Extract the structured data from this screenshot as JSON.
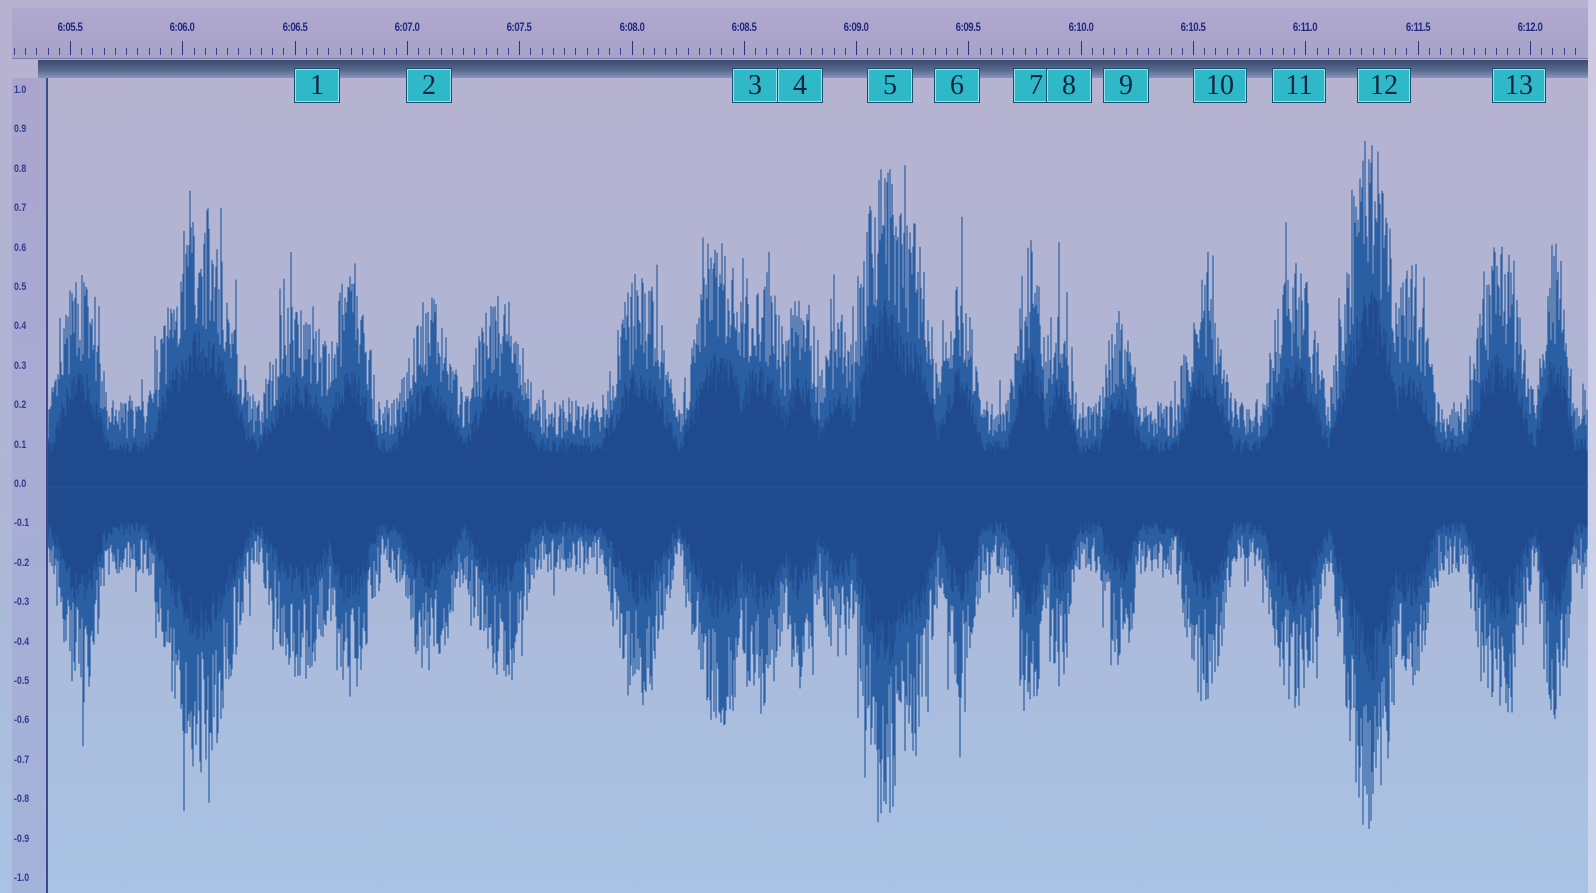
{
  "timeline": {
    "labels": [
      "6:05.5",
      "6:06.0",
      "6:06.5",
      "6:07.0",
      "6:07.5",
      "6:08.0",
      "6:08.5",
      "6:09.0",
      "6:09.5",
      "6:10.0",
      "6:10.5",
      "6:11.0",
      "6:11.5",
      "6:12.0"
    ],
    "start_seconds": 365.5,
    "label_step_seconds": 0.5
  },
  "amplitude_axis": {
    "labels": [
      "1.0",
      "0.9",
      "0.8",
      "0.7",
      "0.6",
      "0.5",
      "0.4",
      "0.3",
      "0.2",
      "0.1",
      "0.0",
      "-0.1",
      "-0.2",
      "-0.3",
      "-0.4",
      "-0.5",
      "-0.6",
      "-0.7",
      "-0.8",
      "-0.9",
      "-1.0"
    ]
  },
  "markers": [
    {
      "label": "1",
      "time": 366.6
    },
    {
      "label": "2",
      "time": 367.1
    },
    {
      "label": "3",
      "time": 368.55
    },
    {
      "label": "4",
      "time": 368.75
    },
    {
      "label": "5",
      "time": 369.15
    },
    {
      "label": "6",
      "time": 369.45
    },
    {
      "label": "7",
      "time": 369.8
    },
    {
      "label": "8",
      "time": 369.95
    },
    {
      "label": "9",
      "time": 370.2
    },
    {
      "label": "10",
      "time": 370.62
    },
    {
      "label": "11",
      "time": 370.97
    },
    {
      "label": "12",
      "time": 371.35
    },
    {
      "label": "13",
      "time": 371.95
    }
  ],
  "colors": {
    "waveform": "#2a5fa3",
    "waveform_dark": "#1f4a8e",
    "marker_fill": "#2fb8c8"
  }
}
